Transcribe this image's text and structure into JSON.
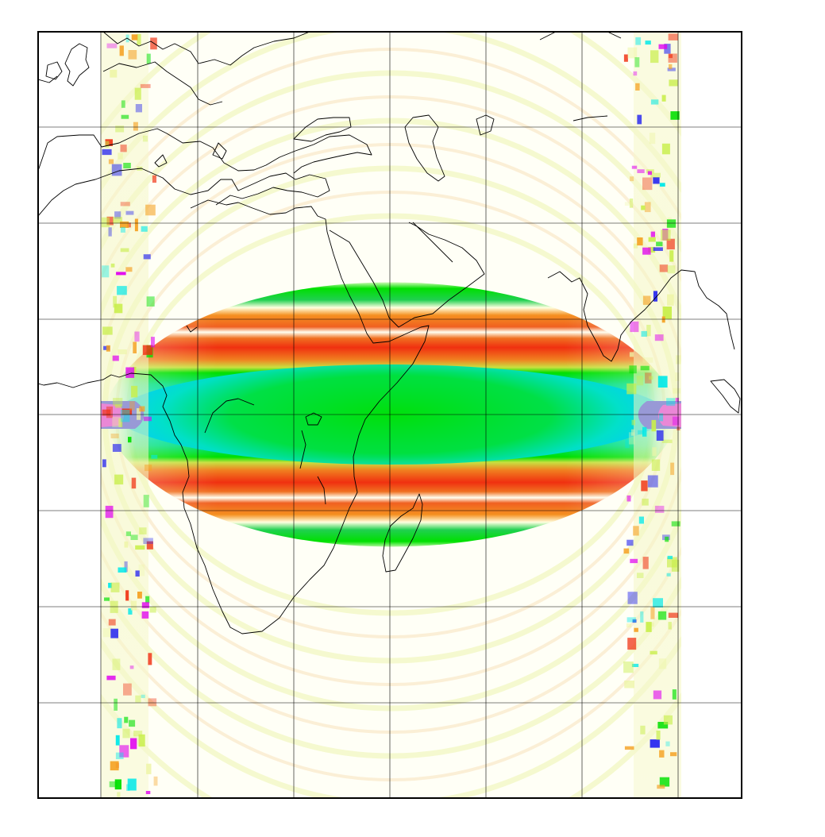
{
  "map": {
    "projection": "cylindrical",
    "field_colormap": [
      "#fffff5",
      "#eef5a8",
      "#c8ee4a",
      "#f5a020",
      "#f03010",
      "#00e000",
      "#00e8e8",
      "#2828f0",
      "#e000f0"
    ],
    "coastline_color": "#000000",
    "gridline_color": "#000000",
    "frame_color": "#000000",
    "vertical_gridlines": 7,
    "horizontal_gridlines": 7,
    "labels_shown": false
  }
}
